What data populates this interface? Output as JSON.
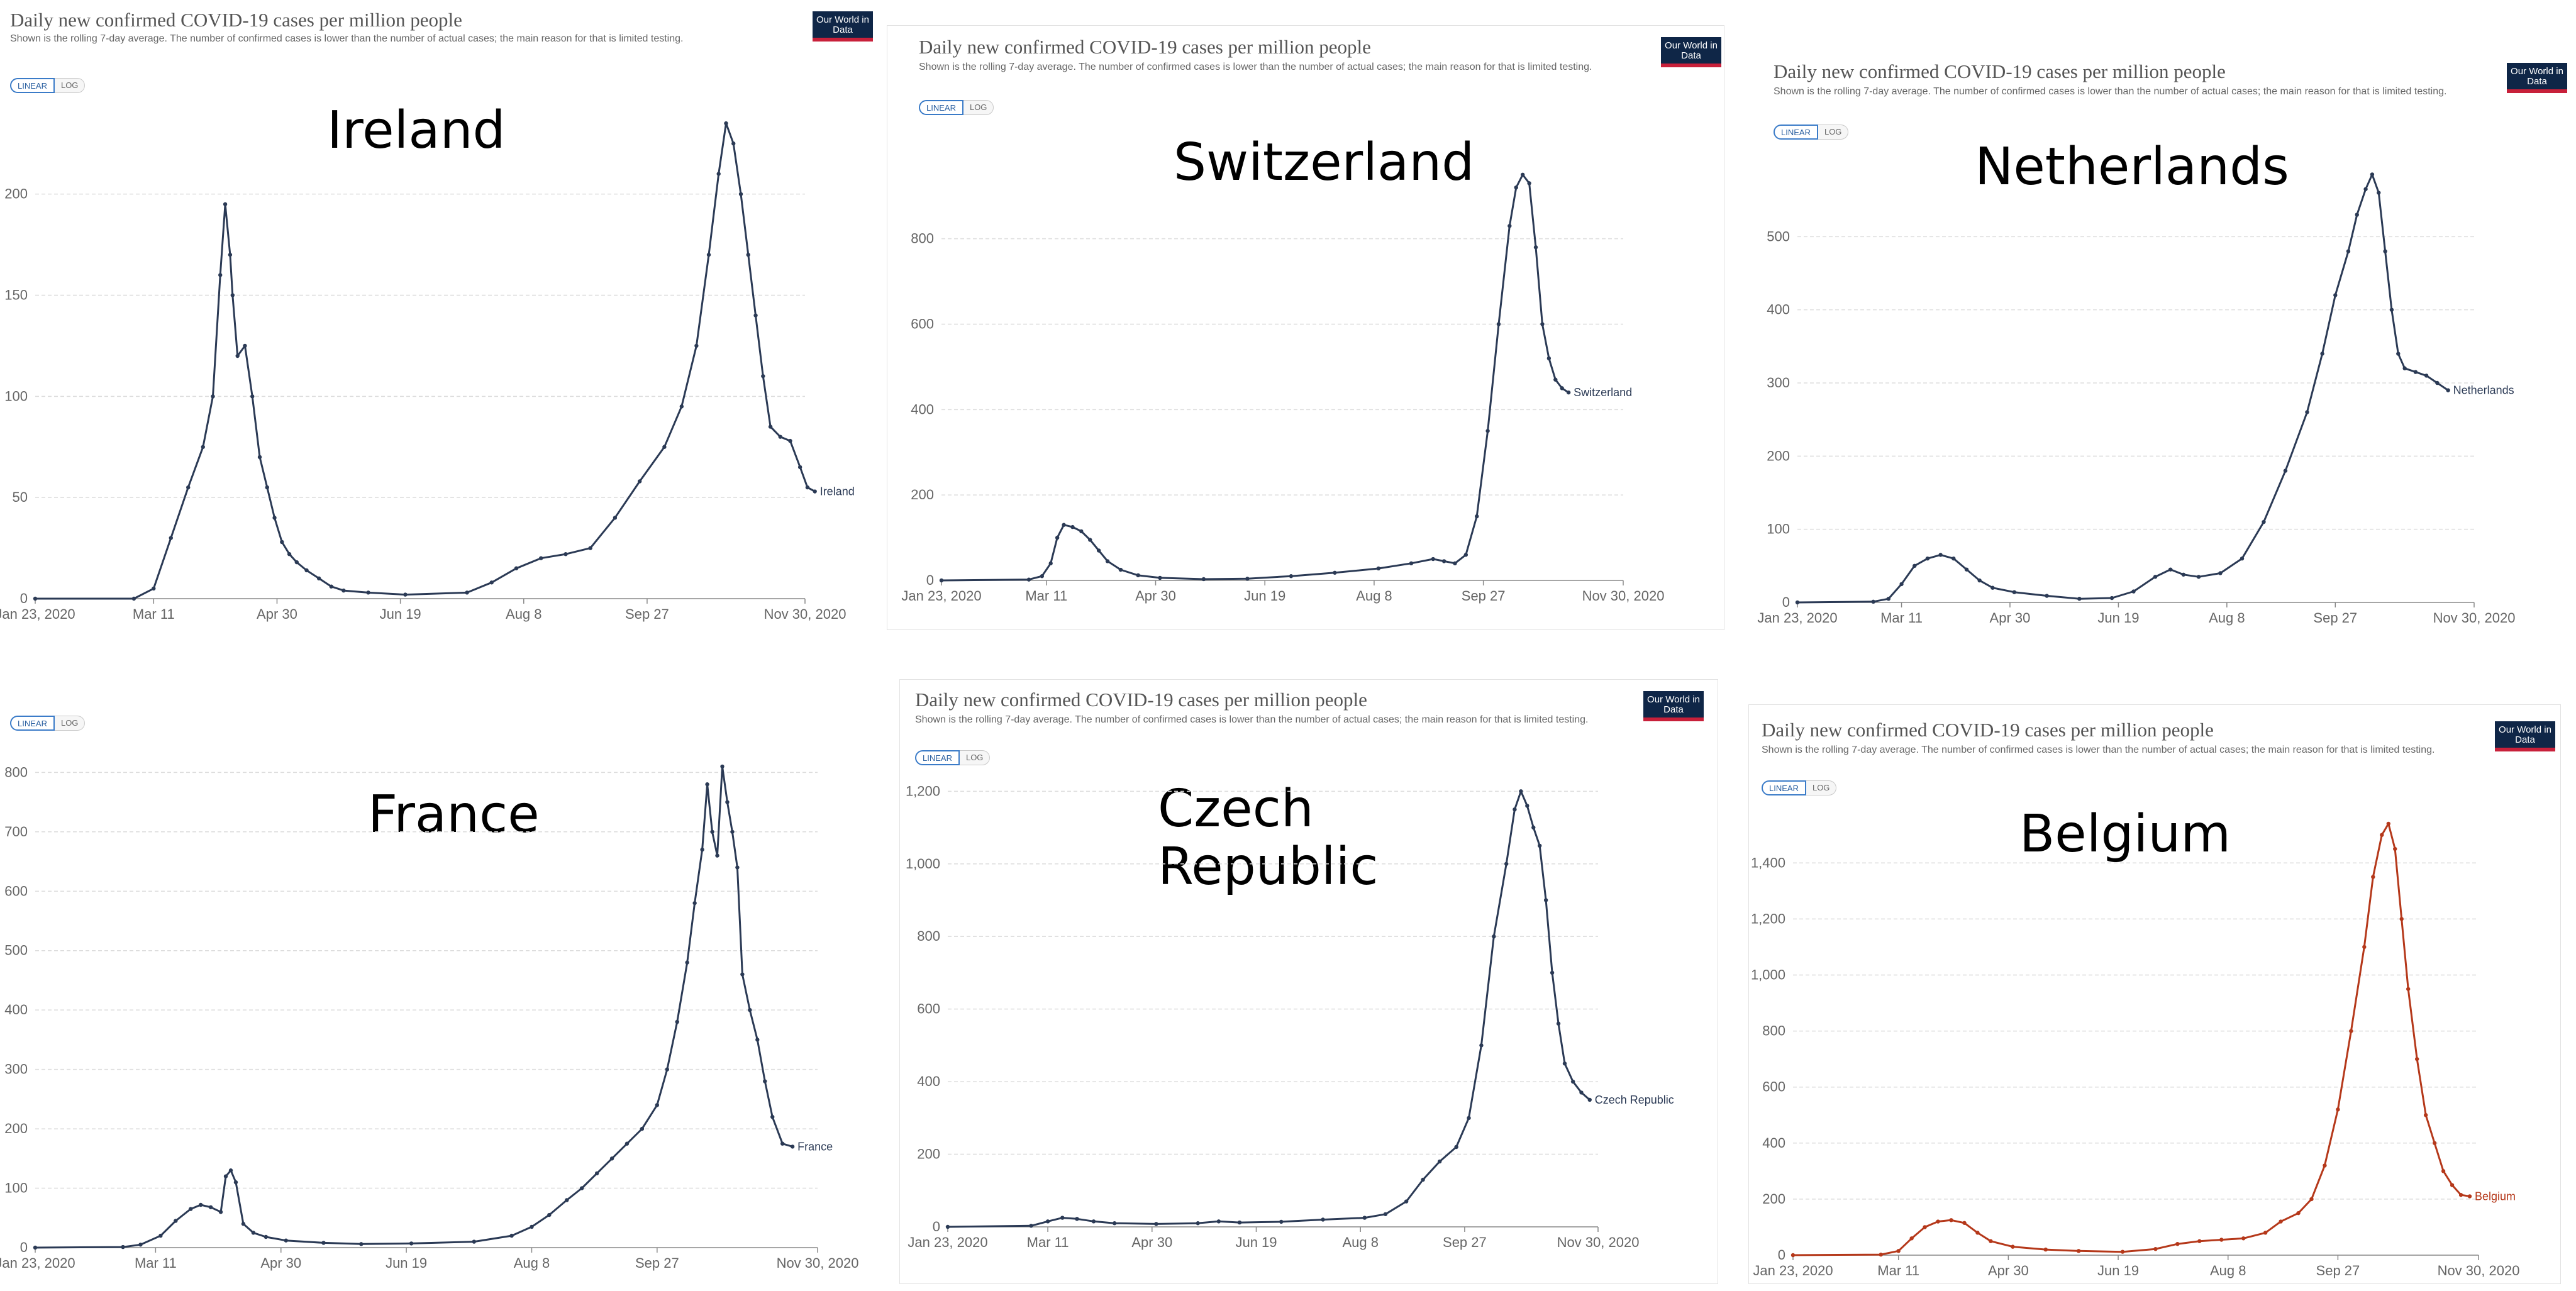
{
  "chart_title": "Daily new confirmed COVID-19 cases per million people",
  "chart_subtitle": "Shown is the rolling 7-day average. The number of confirmed cases is lower than the number of actual cases; the main reason for that is limited testing.",
  "logo_text": "Our World in Data",
  "toggle": {
    "linear": "LINEAR",
    "log": "LOG"
  },
  "xticks": [
    "Jan 23, 2020",
    "Mar 11",
    "Apr 30",
    "Jun 19",
    "Aug 8",
    "Sep 27",
    "Nov 30, 2020"
  ],
  "line_color": "#2b3a55",
  "belgium_color": "#b5381a",
  "chart_data": [
    {
      "type": "line",
      "country": "Ireland",
      "series": [
        {
          "name": "Ireland",
          "values": [
            [
              0,
              0
            ],
            [
              40,
              0
            ],
            [
              48,
              5
            ],
            [
              55,
              30
            ],
            [
              62,
              55
            ],
            [
              68,
              75
            ],
            [
              72,
              100
            ],
            [
              75,
              160
            ],
            [
              77,
              195
            ],
            [
              79,
              170
            ],
            [
              80,
              150
            ],
            [
              82,
              120
            ],
            [
              85,
              125
            ],
            [
              88,
              100
            ],
            [
              91,
              70
            ],
            [
              94,
              55
            ],
            [
              97,
              40
            ],
            [
              100,
              28
            ],
            [
              103,
              22
            ],
            [
              106,
              18
            ],
            [
              110,
              14
            ],
            [
              115,
              10
            ],
            [
              120,
              6
            ],
            [
              125,
              4
            ],
            [
              135,
              3
            ],
            [
              150,
              2
            ],
            [
              175,
              3
            ],
            [
              185,
              8
            ],
            [
              195,
              15
            ],
            [
              205,
              20
            ],
            [
              215,
              22
            ],
            [
              225,
              25
            ],
            [
              235,
              40
            ],
            [
              245,
              58
            ],
            [
              255,
              75
            ],
            [
              262,
              95
            ],
            [
              268,
              125
            ],
            [
              273,
              170
            ],
            [
              277,
              210
            ],
            [
              280,
              235
            ],
            [
              283,
              225
            ],
            [
              286,
              200
            ],
            [
              289,
              170
            ],
            [
              292,
              140
            ],
            [
              295,
              110
            ],
            [
              298,
              85
            ],
            [
              302,
              80
            ],
            [
              306,
              78
            ],
            [
              310,
              65
            ],
            [
              313,
              55
            ],
            [
              316,
              53
            ]
          ]
        }
      ],
      "ylim": [
        0,
        240
      ],
      "yticks": [
        0,
        50,
        100,
        150,
        200
      ]
    },
    {
      "type": "line",
      "country": "Switzerland",
      "series": [
        {
          "name": "Switzerland",
          "values": [
            [
              0,
              0
            ],
            [
              40,
              2
            ],
            [
              46,
              10
            ],
            [
              50,
              40
            ],
            [
              53,
              100
            ],
            [
              56,
              130
            ],
            [
              60,
              125
            ],
            [
              64,
              115
            ],
            [
              68,
              95
            ],
            [
              72,
              70
            ],
            [
              76,
              45
            ],
            [
              82,
              25
            ],
            [
              90,
              12
            ],
            [
              100,
              6
            ],
            [
              120,
              3
            ],
            [
              140,
              4
            ],
            [
              160,
              10
            ],
            [
              180,
              18
            ],
            [
              200,
              28
            ],
            [
              215,
              40
            ],
            [
              225,
              50
            ],
            [
              230,
              45
            ],
            [
              235,
              40
            ],
            [
              240,
              60
            ],
            [
              245,
              150
            ],
            [
              250,
              350
            ],
            [
              255,
              600
            ],
            [
              260,
              830
            ],
            [
              263,
              920
            ],
            [
              266,
              950
            ],
            [
              269,
              930
            ],
            [
              272,
              780
            ],
            [
              275,
              600
            ],
            [
              278,
              520
            ],
            [
              281,
              470
            ],
            [
              284,
              450
            ],
            [
              287,
              440
            ]
          ]
        }
      ],
      "ylim": [
        0,
        960
      ],
      "yticks": [
        0,
        200,
        400,
        600,
        800
      ]
    },
    {
      "type": "line",
      "country": "Netherlands",
      "series": [
        {
          "name": "Netherlands",
          "values": [
            [
              0,
              0
            ],
            [
              35,
              1
            ],
            [
              42,
              5
            ],
            [
              48,
              25
            ],
            [
              54,
              50
            ],
            [
              60,
              60
            ],
            [
              66,
              65
            ],
            [
              72,
              60
            ],
            [
              78,
              45
            ],
            [
              84,
              30
            ],
            [
              90,
              20
            ],
            [
              100,
              14
            ],
            [
              115,
              9
            ],
            [
              130,
              5
            ],
            [
              145,
              6
            ],
            [
              155,
              15
            ],
            [
              165,
              35
            ],
            [
              172,
              45
            ],
            [
              178,
              38
            ],
            [
              185,
              35
            ],
            [
              195,
              40
            ],
            [
              205,
              60
            ],
            [
              215,
              110
            ],
            [
              225,
              180
            ],
            [
              235,
              260
            ],
            [
              242,
              340
            ],
            [
              248,
              420
            ],
            [
              254,
              480
            ],
            [
              258,
              530
            ],
            [
              262,
              565
            ],
            [
              265,
              585
            ],
            [
              268,
              560
            ],
            [
              271,
              480
            ],
            [
              274,
              400
            ],
            [
              277,
              340
            ],
            [
              280,
              320
            ],
            [
              285,
              315
            ],
            [
              290,
              310
            ],
            [
              295,
              300
            ],
            [
              300,
              290
            ]
          ]
        }
      ],
      "ylim": [
        0,
        600
      ],
      "yticks": [
        0,
        100,
        200,
        300,
        400,
        500
      ]
    },
    {
      "type": "line",
      "country": "France",
      "series": [
        {
          "name": "France",
          "values": [
            [
              0,
              0
            ],
            [
              35,
              1
            ],
            [
              42,
              5
            ],
            [
              50,
              20
            ],
            [
              56,
              45
            ],
            [
              62,
              65
            ],
            [
              66,
              72
            ],
            [
              70,
              68
            ],
            [
              74,
              60
            ],
            [
              76,
              120
            ],
            [
              78,
              130
            ],
            [
              80,
              110
            ],
            [
              83,
              40
            ],
            [
              87,
              25
            ],
            [
              92,
              18
            ],
            [
              100,
              12
            ],
            [
              115,
              8
            ],
            [
              130,
              6
            ],
            [
              150,
              7
            ],
            [
              175,
              10
            ],
            [
              190,
              20
            ],
            [
              198,
              35
            ],
            [
              205,
              55
            ],
            [
              212,
              80
            ],
            [
              218,
              100
            ],
            [
              224,
              125
            ],
            [
              230,
              150
            ],
            [
              236,
              175
            ],
            [
              242,
              200
            ],
            [
              248,
              240
            ],
            [
              252,
              300
            ],
            [
              256,
              380
            ],
            [
              260,
              480
            ],
            [
              263,
              580
            ],
            [
              266,
              670
            ],
            [
              268,
              780
            ],
            [
              270,
              700
            ],
            [
              272,
              660
            ],
            [
              274,
              810
            ],
            [
              276,
              750
            ],
            [
              278,
              700
            ],
            [
              280,
              640
            ],
            [
              282,
              460
            ],
            [
              285,
              400
            ],
            [
              288,
              350
            ],
            [
              291,
              280
            ],
            [
              294,
              220
            ],
            [
              298,
              175
            ],
            [
              302,
              170
            ]
          ]
        }
      ],
      "ylim": [
        0,
        830
      ],
      "yticks": [
        0,
        100,
        200,
        300,
        400,
        500,
        600,
        700,
        800
      ]
    },
    {
      "type": "line",
      "country": "Czech Republic",
      "series": [
        {
          "name": "Czech Republic",
          "values": [
            [
              0,
              0
            ],
            [
              40,
              3
            ],
            [
              48,
              15
            ],
            [
              55,
              25
            ],
            [
              62,
              22
            ],
            [
              70,
              15
            ],
            [
              80,
              10
            ],
            [
              100,
              8
            ],
            [
              120,
              10
            ],
            [
              130,
              15
            ],
            [
              140,
              12
            ],
            [
              160,
              14
            ],
            [
              180,
              20
            ],
            [
              200,
              25
            ],
            [
              210,
              35
            ],
            [
              220,
              70
            ],
            [
              228,
              130
            ],
            [
              236,
              180
            ],
            [
              244,
              220
            ],
            [
              250,
              300
            ],
            [
              256,
              500
            ],
            [
              262,
              800
            ],
            [
              268,
              1000
            ],
            [
              272,
              1150
            ],
            [
              275,
              1200
            ],
            [
              278,
              1160
            ],
            [
              281,
              1100
            ],
            [
              284,
              1050
            ],
            [
              287,
              900
            ],
            [
              290,
              700
            ],
            [
              293,
              560
            ],
            [
              296,
              450
            ],
            [
              300,
              400
            ],
            [
              304,
              370
            ],
            [
              308,
              350
            ]
          ]
        }
      ],
      "ylim": [
        0,
        1230
      ],
      "yticks": [
        0,
        200,
        400,
        600,
        800,
        1000,
        1200
      ]
    },
    {
      "type": "line",
      "country": "Belgium",
      "series": [
        {
          "name": "Belgium",
          "values": [
            [
              0,
              0
            ],
            [
              40,
              2
            ],
            [
              48,
              15
            ],
            [
              54,
              60
            ],
            [
              60,
              100
            ],
            [
              66,
              120
            ],
            [
              72,
              125
            ],
            [
              78,
              115
            ],
            [
              84,
              80
            ],
            [
              90,
              50
            ],
            [
              100,
              30
            ],
            [
              115,
              20
            ],
            [
              130,
              15
            ],
            [
              150,
              12
            ],
            [
              165,
              22
            ],
            [
              175,
              40
            ],
            [
              185,
              50
            ],
            [
              195,
              55
            ],
            [
              205,
              60
            ],
            [
              215,
              80
            ],
            [
              222,
              120
            ],
            [
              230,
              150
            ],
            [
              236,
              200
            ],
            [
              242,
              320
            ],
            [
              248,
              520
            ],
            [
              254,
              800
            ],
            [
              260,
              1100
            ],
            [
              264,
              1350
            ],
            [
              268,
              1500
            ],
            [
              271,
              1540
            ],
            [
              274,
              1450
            ],
            [
              277,
              1200
            ],
            [
              280,
              950
            ],
            [
              284,
              700
            ],
            [
              288,
              500
            ],
            [
              292,
              400
            ],
            [
              296,
              300
            ],
            [
              300,
              250
            ],
            [
              304,
              215
            ],
            [
              308,
              210
            ]
          ]
        }
      ],
      "ylim": [
        0,
        1560
      ],
      "yticks": [
        0,
        200,
        400,
        600,
        800,
        1000,
        1200,
        1400
      ]
    }
  ]
}
